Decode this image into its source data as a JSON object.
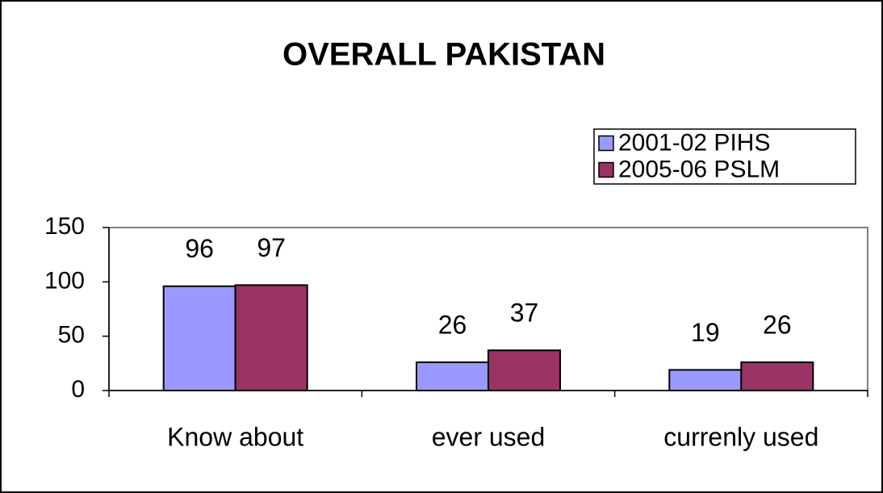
{
  "chart_data": {
    "type": "bar",
    "title": "OVERALL PAKISTAN",
    "categories": [
      "Know about",
      "ever used",
      "currenly used"
    ],
    "series": [
      {
        "name": "2001-02 PIHS",
        "color": "#9999ff",
        "values": [
          96,
          26,
          19
        ]
      },
      {
        "name": "2005-06 PSLM",
        "color": "#993366",
        "values": [
          97,
          37,
          26
        ]
      }
    ],
    "ylim": [
      0,
      150
    ],
    "yticks": [
      0,
      50,
      100,
      150
    ],
    "legend": "upper right"
  }
}
